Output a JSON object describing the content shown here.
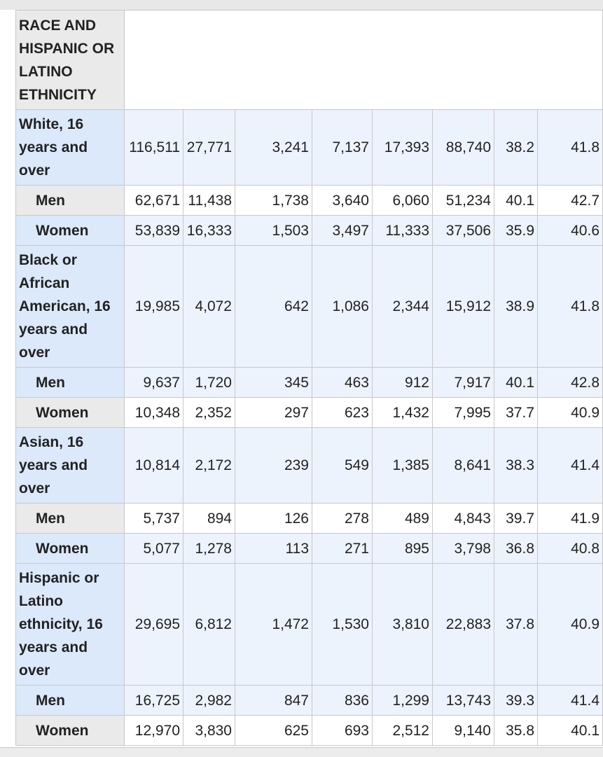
{
  "table": {
    "header_label": "RACE AND HISPANIC OR LATINO ETHNICITY",
    "rows": [
      {
        "label": "White, 16 years and over",
        "indent": false,
        "values": [
          "116,511",
          "27,771",
          "3,241",
          "7,137",
          "17,393",
          "88,740",
          "38.2",
          "41.8"
        ]
      },
      {
        "label": "Men",
        "indent": true,
        "values": [
          "62,671",
          "11,438",
          "1,738",
          "3,640",
          "6,060",
          "51,234",
          "40.1",
          "42.7"
        ]
      },
      {
        "label": "Women",
        "indent": true,
        "values": [
          "53,839",
          "16,333",
          "1,503",
          "3,497",
          "11,333",
          "37,506",
          "35.9",
          "40.6"
        ]
      },
      {
        "label": "Black or African American, 16 years and over",
        "indent": false,
        "values": [
          "19,985",
          "4,072",
          "642",
          "1,086",
          "2,344",
          "15,912",
          "38.9",
          "41.8"
        ]
      },
      {
        "label": "Men",
        "indent": true,
        "values": [
          "9,637",
          "1,720",
          "345",
          "463",
          "912",
          "7,917",
          "40.1",
          "42.8"
        ]
      },
      {
        "label": "Women",
        "indent": true,
        "values": [
          "10,348",
          "2,352",
          "297",
          "623",
          "1,432",
          "7,995",
          "37.7",
          "40.9"
        ]
      },
      {
        "label": "Asian, 16 years and over",
        "indent": false,
        "values": [
          "10,814",
          "2,172",
          "239",
          "549",
          "1,385",
          "8,641",
          "38.3",
          "41.4"
        ]
      },
      {
        "label": "Men",
        "indent": true,
        "values": [
          "5,737",
          "894",
          "126",
          "278",
          "489",
          "4,843",
          "39.7",
          "41.9"
        ]
      },
      {
        "label": "Women",
        "indent": true,
        "values": [
          "5,077",
          "1,278",
          "113",
          "271",
          "895",
          "3,798",
          "36.8",
          "40.8"
        ]
      },
      {
        "label": "Hispanic or Latino ethnicity, 16 years and over",
        "indent": false,
        "values": [
          "29,695",
          "6,812",
          "1,472",
          "1,530",
          "3,810",
          "22,883",
          "37.8",
          "40.9"
        ]
      },
      {
        "label": "Men",
        "indent": true,
        "values": [
          "16,725",
          "2,982",
          "847",
          "836",
          "1,299",
          "13,743",
          "39.3",
          "41.4"
        ]
      },
      {
        "label": "Women",
        "indent": true,
        "values": [
          "12,970",
          "3,830",
          "625",
          "693",
          "2,512",
          "9,140",
          "35.8",
          "40.1"
        ]
      }
    ]
  },
  "colors": {
    "header_gray": "#eaeaea",
    "row_head_blue": "#dce9fb",
    "band_blue": "#edf3fc",
    "grid": "#c8c8c8"
  }
}
